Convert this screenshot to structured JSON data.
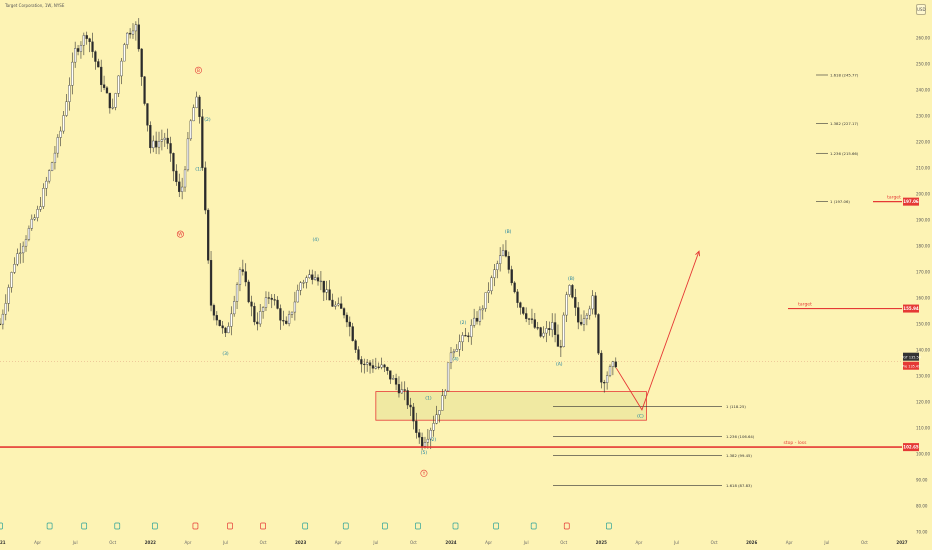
{
  "header": {
    "title": "Target Corporation, 1W, NYSE",
    "currency": "USD"
  },
  "colors": {
    "bg": "#fdf3b4",
    "up": "#ffffff",
    "down": "#2a2a2a",
    "wick": "#333333",
    "accent": "#e53935",
    "wave": "#1a7f9e",
    "zone": "#e53935",
    "up_event": "#2aa198",
    "down_event": "#e53935"
  },
  "chart_data": {
    "type": "candlestick",
    "x_range": [
      2021.0,
      2027.0
    ],
    "y_range": [
      70,
      270
    ],
    "y_ticks": [
      "260.00",
      "250.00",
      "240.00",
      "230.00",
      "220.00",
      "210.00",
      "200.00",
      "190.00",
      "180.00",
      "170.00",
      "160.00",
      "150.00",
      "140.00",
      "130.00",
      "120.00",
      "110.00",
      "100.00",
      "90.00",
      "80.00",
      "70.00"
    ],
    "x_ticks": [
      {
        "label": "2021",
        "x": 2021.0,
        "year": true
      },
      {
        "label": "Apr",
        "x": 2021.25
      },
      {
        "label": "Jul",
        "x": 2021.5
      },
      {
        "label": "Oct",
        "x": 2021.75
      },
      {
        "label": "2022",
        "x": 2022.0,
        "year": true
      },
      {
        "label": "Apr",
        "x": 2022.25
      },
      {
        "label": "Jul",
        "x": 2022.5
      },
      {
        "label": "Oct",
        "x": 2022.75
      },
      {
        "label": "2023",
        "x": 2023.0,
        "year": true
      },
      {
        "label": "Apr",
        "x": 2023.25
      },
      {
        "label": "Jul",
        "x": 2023.5
      },
      {
        "label": "Oct",
        "x": 2023.75
      },
      {
        "label": "2024",
        "x": 2024.0,
        "year": true
      },
      {
        "label": "Apr",
        "x": 2024.25
      },
      {
        "label": "Jul",
        "x": 2024.5
      },
      {
        "label": "Oct",
        "x": 2024.75
      },
      {
        "label": "2025",
        "x": 2025.0,
        "year": true
      },
      {
        "label": "Apr",
        "x": 2025.25
      },
      {
        "label": "Jul",
        "x": 2025.5
      },
      {
        "label": "Oct",
        "x": 2025.75
      },
      {
        "label": "2026",
        "x": 2026.0,
        "year": true
      },
      {
        "label": "Apr",
        "x": 2026.25
      },
      {
        "label": "Jul",
        "x": 2026.5
      },
      {
        "label": "Oct",
        "x": 2026.75
      },
      {
        "label": "2027",
        "x": 2027.0,
        "year": true
      }
    ],
    "price_path": [
      [
        2021.0,
        150
      ],
      [
        2021.1,
        175
      ],
      [
        2021.25,
        193
      ],
      [
        2021.4,
        223
      ],
      [
        2021.5,
        255
      ],
      [
        2021.58,
        262
      ],
      [
        2021.68,
        242
      ],
      [
        2021.75,
        232
      ],
      [
        2021.83,
        260
      ],
      [
        2021.9,
        266
      ],
      [
        2022.0,
        218
      ],
      [
        2022.1,
        222
      ],
      [
        2022.2,
        198
      ],
      [
        2022.28,
        232
      ],
      [
        2022.32,
        237
      ],
      [
        2022.4,
        158
      ],
      [
        2022.5,
        145
      ],
      [
        2022.6,
        172
      ],
      [
        2022.7,
        150
      ],
      [
        2022.8,
        162
      ],
      [
        2022.9,
        148
      ],
      [
        2023.0,
        166
      ],
      [
        2023.1,
        170
      ],
      [
        2023.2,
        158
      ],
      [
        2023.3,
        154
      ],
      [
        2023.4,
        135
      ],
      [
        2023.55,
        133
      ],
      [
        2023.7,
        122
      ],
      [
        2023.8,
        104
      ],
      [
        2023.85,
        108
      ],
      [
        2023.95,
        122
      ],
      [
        2024.0,
        140
      ],
      [
        2024.1,
        145
      ],
      [
        2024.2,
        155
      ],
      [
        2024.3,
        172
      ],
      [
        2024.35,
        178
      ],
      [
        2024.45,
        158
      ],
      [
        2024.6,
        145
      ],
      [
        2024.68,
        150
      ],
      [
        2024.72,
        138
      ],
      [
        2024.78,
        165
      ],
      [
        2024.85,
        150
      ],
      [
        2024.95,
        160
      ],
      [
        2025.0,
        128
      ],
      [
        2025.07,
        133
      ],
      [
        2025.1,
        135.5
      ]
    ],
    "fib_levels": [
      {
        "label": "1.618 (245.77)",
        "value": 245.77
      },
      {
        "label": "1.382 (227.17)",
        "value": 227.17
      },
      {
        "label": "1.236 (215.66)",
        "value": 215.66
      },
      {
        "label": "1 (197.06)",
        "value": 197.06
      },
      {
        "label": "1 (118.25)",
        "value": 118.25
      },
      {
        "label": "1.236 (106.64)",
        "value": 106.64
      },
      {
        "label": "1.382 (99.45)",
        "value": 99.45
      },
      {
        "label": "1.618 (87.83)",
        "value": 87.83
      }
    ],
    "horizontal_lines": [
      {
        "label": "target",
        "value": 197.06,
        "tag": "197.06"
      },
      {
        "label": "target",
        "value": 155.94,
        "tag": "155.94"
      },
      {
        "label": "stop - loss",
        "value": 102.65,
        "tag": "102.65"
      }
    ],
    "price_tags": [
      {
        "ticker": "TGT",
        "value": 135.5,
        "tag": "135.50"
      },
      {
        "ticker": "Pre",
        "value": 135.49,
        "tag": "135.49"
      }
    ],
    "zone": {
      "x0": 2023.5,
      "x1": 2025.3,
      "y0": 113,
      "y1": 124
    },
    "projection": [
      [
        2025.1,
        133
      ],
      [
        2025.27,
        117
      ],
      [
        2025.65,
        178
      ]
    ],
    "wave_labels": [
      {
        "text": "B",
        "x": 2022.32,
        "y": 247,
        "color": "accent",
        "circle": true
      },
      {
        "text": "(2)",
        "x": 2022.38,
        "y": 228,
        "color": "wave"
      },
      {
        "text": "(1)",
        "x": 2022.32,
        "y": 209,
        "color": "wave"
      },
      {
        "text": "W",
        "x": 2022.2,
        "y": 184,
        "color": "accent",
        "circle": true
      },
      {
        "text": "(3)",
        "x": 2022.5,
        "y": 138,
        "color": "wave"
      },
      {
        "text": "(4)",
        "x": 2023.1,
        "y": 182,
        "color": "wave"
      },
      {
        "text": "(1)",
        "x": 2023.85,
        "y": 121,
        "color": "wave"
      },
      {
        "text": "(2)",
        "x": 2023.88,
        "y": 105,
        "color": "wave"
      },
      {
        "text": "(5)",
        "x": 2023.82,
        "y": 100,
        "color": "wave"
      },
      {
        "text": "Y",
        "x": 2023.82,
        "y": 92,
        "color": "accent",
        "circle": true
      },
      {
        "text": "(2)",
        "x": 2024.08,
        "y": 150,
        "color": "wave"
      },
      {
        "text": "(4)",
        "x": 2024.03,
        "y": 136,
        "color": "wave"
      },
      {
        "text": "(B)",
        "x": 2024.38,
        "y": 185,
        "color": "wave"
      },
      {
        "text": "(A)",
        "x": 2024.72,
        "y": 134,
        "color": "wave"
      },
      {
        "text": "(B)",
        "x": 2024.8,
        "y": 167,
        "color": "wave"
      },
      {
        "text": "(C)",
        "x": 2025.26,
        "y": 114,
        "color": "wave"
      }
    ]
  }
}
